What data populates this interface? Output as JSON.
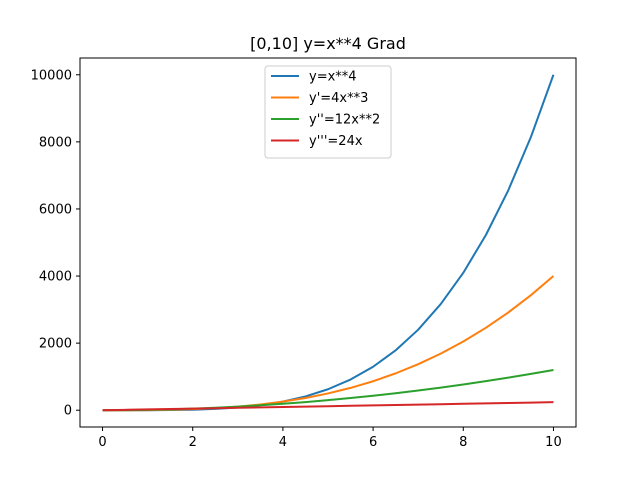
{
  "chart_data": {
    "type": "line",
    "title": "[0,10] y=x**4  Grad",
    "xlabel": "",
    "ylabel": "",
    "xlim": [
      -0.5,
      10.5
    ],
    "ylim": [
      -500,
      10500
    ],
    "xticks": [
      0,
      2,
      4,
      6,
      8,
      10
    ],
    "yticks": [
      0,
      2000,
      4000,
      6000,
      8000,
      10000
    ],
    "grid": false,
    "legend_position": "upper center",
    "x": [
      0,
      0.5,
      1,
      1.5,
      2,
      2.5,
      3,
      3.5,
      4,
      4.5,
      5,
      5.5,
      6,
      6.5,
      7,
      7.5,
      8,
      8.5,
      9,
      9.5,
      10
    ],
    "series": [
      {
        "name": "y=x**4",
        "color": "#1f77b4",
        "values": [
          0,
          0.0625,
          1,
          5.0625,
          16,
          39.0625,
          81,
          150.0625,
          256,
          410.0625,
          625,
          915.0625,
          1296,
          1785.0625,
          2401,
          3164.0625,
          4096,
          5220.0625,
          6561,
          8145.0625,
          10000
        ]
      },
      {
        "name": "y'=4x**3",
        "color": "#ff7f0e",
        "values": [
          0,
          0.5,
          4,
          13.5,
          32,
          62.5,
          108,
          171.5,
          256,
          364.5,
          500,
          665.5,
          864,
          1098.5,
          1372,
          1687.5,
          2048,
          2456.5,
          2916,
          3429.5,
          4000
        ]
      },
      {
        "name": "y''=12x**2",
        "color": "#2ca02c",
        "values": [
          0,
          3,
          12,
          27,
          48,
          75,
          108,
          147,
          192,
          243,
          300,
          363,
          432,
          507,
          588,
          675,
          768,
          867,
          972,
          1083,
          1200
        ]
      },
      {
        "name": "y'''=24x",
        "color": "#d62728",
        "values": [
          0,
          12,
          24,
          36,
          48,
          60,
          72,
          84,
          96,
          108,
          120,
          132,
          144,
          156,
          168,
          180,
          192,
          204,
          216,
          228,
          240
        ]
      }
    ]
  }
}
